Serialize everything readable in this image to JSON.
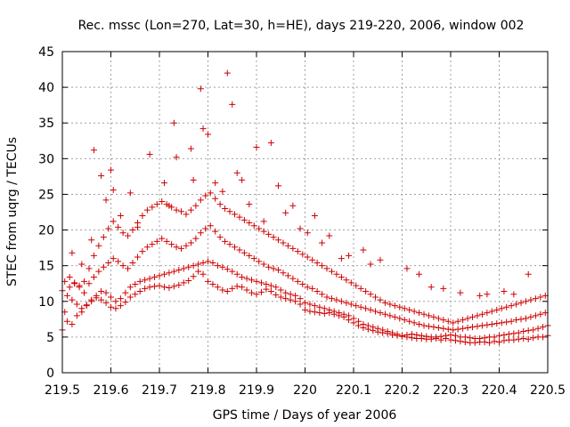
{
  "chart_data": {
    "type": "scatter",
    "title": "Rec. mssc (Lon=270, Lat=30, h=HE), days 219-220, 2006, window 002",
    "xlabel": "GPS time / Days of year 2006",
    "ylabel": "STEC from uqrg / TECUs",
    "xlim": [
      219.5,
      220.5
    ],
    "ylim": [
      0,
      45
    ],
    "xticks": [
      "219.5",
      "219.6",
      "219.7",
      "219.8",
      "219.9",
      "220",
      "220.1",
      "220.2",
      "220.3",
      "220.4",
      "220.5"
    ],
    "yticks": [
      "0",
      "5",
      "10",
      "15",
      "20",
      "25",
      "30",
      "35",
      "40",
      "45"
    ],
    "grid": true,
    "marker": "+",
    "color": "#d00000",
    "series": [
      {
        "name": "STEC",
        "x": [
          219.5,
          219.51,
          219.52,
          219.53,
          219.54,
          219.55,
          219.56,
          219.57,
          219.58,
          219.59,
          219.6,
          219.61,
          219.62,
          219.63,
          219.64,
          219.65,
          219.66,
          219.67,
          219.68,
          219.69,
          219.7,
          219.71,
          219.72,
          219.73,
          219.74,
          219.75,
          219.76,
          219.77,
          219.78,
          219.79,
          219.8,
          219.81,
          219.82,
          219.83,
          219.84,
          219.85,
          219.86,
          219.87,
          219.88,
          219.89,
          219.9,
          219.91,
          219.92,
          219.93,
          219.94,
          219.95,
          219.96,
          219.97,
          219.98,
          219.99,
          220.0,
          220.01,
          220.02,
          220.03,
          220.04,
          220.05,
          220.06,
          220.07,
          220.08,
          220.09,
          220.1,
          220.11,
          220.12,
          220.13,
          220.14,
          220.15,
          220.16,
          220.17,
          220.18,
          220.19,
          220.2,
          220.21,
          220.22,
          220.23,
          220.24,
          220.25,
          220.26,
          220.27,
          220.28,
          220.29,
          220.3,
          220.31,
          220.32,
          220.33,
          220.34,
          220.35,
          220.36,
          220.37,
          220.38,
          220.39,
          220.4,
          220.41,
          220.42,
          220.43,
          220.44,
          220.45,
          220.46,
          220.47,
          220.48,
          220.49,
          220.5,
          219.5,
          219.51,
          219.52,
          219.53,
          219.54,
          219.55,
          219.56,
          219.57,
          219.58,
          219.59,
          219.6,
          219.61,
          219.62,
          219.63,
          219.64,
          219.65,
          219.66,
          219.67,
          219.68,
          219.69,
          219.7,
          219.71,
          219.72,
          219.73,
          219.74,
          219.75,
          219.76,
          219.77,
          219.78,
          219.79,
          219.8,
          219.81,
          219.82,
          219.83,
          219.84,
          219.85,
          219.86,
          219.87,
          219.88,
          219.89,
          219.9,
          219.91,
          219.92,
          219.93,
          219.94,
          219.95,
          219.96,
          219.97,
          219.98,
          219.99,
          220.0,
          220.01,
          220.02,
          220.03,
          220.04,
          220.05,
          220.06,
          220.07,
          220.08,
          220.09,
          220.1,
          220.11,
          220.12,
          220.13,
          220.14,
          220.15,
          220.16,
          220.17,
          220.18,
          220.19,
          220.2,
          220.21,
          220.22,
          220.23,
          220.24,
          220.25,
          220.26,
          220.27,
          220.28,
          220.29,
          220.3,
          220.31,
          220.32,
          220.33,
          220.34,
          220.35,
          220.36,
          220.37,
          220.38,
          220.39,
          220.4,
          220.41,
          220.42,
          220.43,
          220.44,
          220.45,
          220.46,
          220.47,
          220.48,
          220.49,
          220.5,
          219.505,
          219.515,
          219.525,
          219.535,
          219.545,
          219.555,
          219.565,
          219.575,
          219.585,
          219.595,
          219.605,
          219.615,
          219.625,
          219.635,
          219.645,
          219.655,
          219.665,
          219.675,
          219.685,
          219.695,
          219.705,
          219.715,
          219.725,
          219.735,
          219.745,
          219.755,
          219.765,
          219.775,
          219.785,
          219.795,
          219.805,
          219.815,
          219.825,
          219.835,
          219.845,
          219.855,
          219.865,
          219.875,
          219.885,
          219.895,
          219.905,
          219.915,
          219.925,
          219.935,
          219.945,
          219.955,
          219.965,
          219.975,
          219.985,
          219.995,
          220.005,
          220.015,
          220.025,
          220.035,
          220.045,
          220.055,
          220.065,
          220.075,
          220.085,
          220.095,
          220.105,
          220.115,
          220.125,
          220.135,
          220.145,
          220.155,
          220.165,
          220.175,
          220.185,
          220.195,
          220.205,
          220.215,
          220.225,
          220.235,
          220.245,
          220.255,
          220.265,
          220.275,
          220.285,
          220.295,
          220.305,
          220.315,
          220.325,
          220.335,
          220.345,
          220.355,
          220.365,
          220.375,
          220.385,
          220.395,
          220.405,
          220.415,
          220.425,
          220.435,
          220.445,
          220.455,
          220.465,
          220.475,
          220.485,
          220.495,
          219.505,
          219.515,
          219.525,
          219.535,
          219.545,
          219.555,
          219.565,
          219.575,
          219.585,
          219.595,
          219.605,
          219.615,
          219.625,
          219.635,
          219.645,
          219.655,
          219.665,
          219.675,
          219.685,
          219.695,
          219.705,
          219.715,
          219.725,
          219.735,
          219.745,
          219.755,
          219.765,
          219.775,
          219.785,
          219.795,
          219.805,
          219.815,
          219.825,
          219.835,
          219.845,
          219.855,
          219.865,
          219.875,
          219.885,
          219.895,
          219.905,
          219.915,
          219.925,
          219.935,
          219.945,
          219.955,
          219.965,
          219.975,
          219.985,
          219.995,
          220.005,
          220.015,
          220.025,
          220.035,
          220.045,
          220.055,
          220.065,
          220.075,
          220.085,
          220.095,
          220.105,
          220.115,
          220.125,
          220.135,
          220.145,
          220.155,
          220.165,
          220.175,
          220.185,
          220.195,
          220.205,
          220.215,
          220.225,
          220.235,
          220.245,
          220.255,
          220.265,
          220.275,
          220.285,
          220.295,
          220.305,
          220.315,
          220.325,
          220.335,
          220.345,
          220.355,
          220.365,
          220.375,
          220.385,
          220.395,
          220.405,
          220.415,
          220.425,
          220.435,
          220.445,
          220.455,
          220.465,
          220.475,
          220.485,
          220.495,
          219.52,
          219.54,
          219.56,
          219.565,
          219.58,
          219.59,
          219.6,
          219.605,
          219.62,
          219.64,
          219.655,
          219.68,
          219.71,
          219.72,
          219.73,
          219.735,
          219.765,
          219.77,
          219.785,
          219.79,
          219.8,
          219.815,
          219.83,
          219.84,
          219.85,
          219.86,
          219.87,
          219.885,
          219.9,
          219.915,
          219.93,
          219.945,
          219.96,
          219.975,
          219.99,
          220.005,
          220.02,
          220.035,
          220.05,
          220.075,
          220.09,
          220.12,
          220.135,
          220.155,
          220.21,
          220.235,
          220.26,
          220.285,
          220.32,
          220.36,
          220.375,
          220.41,
          220.43,
          220.46
        ],
        "y": [
          11.5,
          10.8,
          10.2,
          9.6,
          9.0,
          9.5,
          10.0,
          10.5,
          10.2,
          9.8,
          9.2,
          9.0,
          9.4,
          9.9,
          10.6,
          11.0,
          11.4,
          11.8,
          12.0,
          12.1,
          12.2,
          12.0,
          11.9,
          12.1,
          12.3,
          12.6,
          12.9,
          13.5,
          14.2,
          13.8,
          12.8,
          12.4,
          12.0,
          11.6,
          11.4,
          11.8,
          12.1,
          12.0,
          11.6,
          11.2,
          11.0,
          11.3,
          11.7,
          11.4,
          10.9,
          10.6,
          10.4,
          10.2,
          10.0,
          9.6,
          8.8,
          8.6,
          8.5,
          8.4,
          8.3,
          8.4,
          8.2,
          8.0,
          7.8,
          7.4,
          7.0,
          6.6,
          6.3,
          6.1,
          5.9,
          5.7,
          5.6,
          5.5,
          5.3,
          5.2,
          5.1,
          5.0,
          4.9,
          4.8,
          4.8,
          4.7,
          4.7,
          4.8,
          4.6,
          4.8,
          4.6,
          4.5,
          4.4,
          4.3,
          4.2,
          4.2,
          4.3,
          4.3,
          4.2,
          4.4,
          4.3,
          4.5,
          4.6,
          4.6,
          4.7,
          4.8,
          4.7,
          4.9,
          5.0,
          5.0,
          5.2,
          6.0,
          7.2,
          6.8,
          8.0,
          8.5,
          9.4,
          10.2,
          10.8,
          11.4,
          11.2,
          10.6,
          10.0,
          10.4,
          11.2,
          12.0,
          12.4,
          12.8,
          13.0,
          13.2,
          13.4,
          13.6,
          13.8,
          14.0,
          14.2,
          14.4,
          14.6,
          14.8,
          15.0,
          15.2,
          15.4,
          15.6,
          15.4,
          15.0,
          14.8,
          14.5,
          14.2,
          13.8,
          13.4,
          13.2,
          13.0,
          12.8,
          12.6,
          12.4,
          12.2,
          12.0,
          11.6,
          11.2,
          11.0,
          10.8,
          10.4,
          9.8,
          9.6,
          9.4,
          9.2,
          9.0,
          8.8,
          8.6,
          8.4,
          8.2,
          8.0,
          7.6,
          7.2,
          6.8,
          6.6,
          6.4,
          6.2,
          6.0,
          5.8,
          5.6,
          5.4,
          5.2,
          5.3,
          5.4,
          5.3,
          5.2,
          5.1,
          5.0,
          5.0,
          5.1,
          5.2,
          5.3,
          5.2,
          5.0,
          5.0,
          4.9,
          4.8,
          4.8,
          4.9,
          5.0,
          5.0,
          5.2,
          5.3,
          5.4,
          5.5,
          5.6,
          5.8,
          5.9,
          6.0,
          6.2,
          6.4,
          6.6,
          8.5,
          12.0,
          12.5,
          12.0,
          11.2,
          12.5,
          13.4,
          14.2,
          14.8,
          15.4,
          16.0,
          15.6,
          15.0,
          14.6,
          15.4,
          16.2,
          17.0,
          17.6,
          18.0,
          18.4,
          18.8,
          18.4,
          18.0,
          17.6,
          17.4,
          17.8,
          18.2,
          18.8,
          19.6,
          20.2,
          20.6,
          19.8,
          19.0,
          18.4,
          18.0,
          17.6,
          17.2,
          16.8,
          16.4,
          16.0,
          15.6,
          15.2,
          14.8,
          14.6,
          14.4,
          14.0,
          13.6,
          13.2,
          12.8,
          12.4,
          12.0,
          11.8,
          11.4,
          11.0,
          10.6,
          10.4,
          10.2,
          10.0,
          9.8,
          9.6,
          9.4,
          9.2,
          9.0,
          8.8,
          8.6,
          8.4,
          8.2,
          8.0,
          7.8,
          7.6,
          7.4,
          7.2,
          7.0,
          6.8,
          6.6,
          6.5,
          6.4,
          6.3,
          6.2,
          6.1,
          6.0,
          6.1,
          6.2,
          6.3,
          6.4,
          6.5,
          6.6,
          6.7,
          6.8,
          6.9,
          7.0,
          7.1,
          7.2,
          7.4,
          7.5,
          7.6,
          7.8,
          8.0,
          8.2,
          8.4,
          12.8,
          13.4,
          12.6,
          12.2,
          12.8,
          14.6,
          16.4,
          17.8,
          19.0,
          20.2,
          21.2,
          20.4,
          19.6,
          19.2,
          20.0,
          21.0,
          22.0,
          22.8,
          23.2,
          23.6,
          24.0,
          23.6,
          23.2,
          22.8,
          22.6,
          22.2,
          22.8,
          23.4,
          24.2,
          24.8,
          25.2,
          24.4,
          23.6,
          23.0,
          22.6,
          22.2,
          21.8,
          21.4,
          21.0,
          20.6,
          20.2,
          19.8,
          19.4,
          19.0,
          18.6,
          18.2,
          17.8,
          17.4,
          17.0,
          16.6,
          16.2,
          15.8,
          15.4,
          15.0,
          14.6,
          14.2,
          13.8,
          13.4,
          13.0,
          12.6,
          12.2,
          11.8,
          11.4,
          11.0,
          10.6,
          10.2,
          9.8,
          9.6,
          9.4,
          9.2,
          9.0,
          8.8,
          8.6,
          8.4,
          8.2,
          8.0,
          7.8,
          7.6,
          7.4,
          7.2,
          7.0,
          7.2,
          7.4,
          7.6,
          7.8,
          8.0,
          8.2,
          8.4,
          8.6,
          8.8,
          9.0,
          9.2,
          9.4,
          9.6,
          9.8,
          10.0,
          10.2,
          10.4,
          10.6,
          10.8,
          16.8,
          15.2,
          18.6,
          31.2,
          27.6,
          24.2,
          28.4,
          25.6,
          22.0,
          25.2,
          20.4,
          30.6,
          26.6,
          23.4,
          35.0,
          30.2,
          31.4,
          27.0,
          39.8,
          34.2,
          33.4,
          26.6,
          25.4,
          42.0,
          37.6,
          28.0,
          27.0,
          23.6,
          31.6,
          21.2,
          32.2,
          26.2,
          22.4,
          23.4,
          20.2,
          19.6,
          22.0,
          18.2,
          19.2,
          16.0,
          16.4,
          17.2,
          15.2,
          15.8,
          14.6,
          13.8,
          12.0,
          11.8,
          11.2,
          10.8,
          11.0,
          11.4,
          11.0,
          13.8
        ]
      }
    ]
  }
}
